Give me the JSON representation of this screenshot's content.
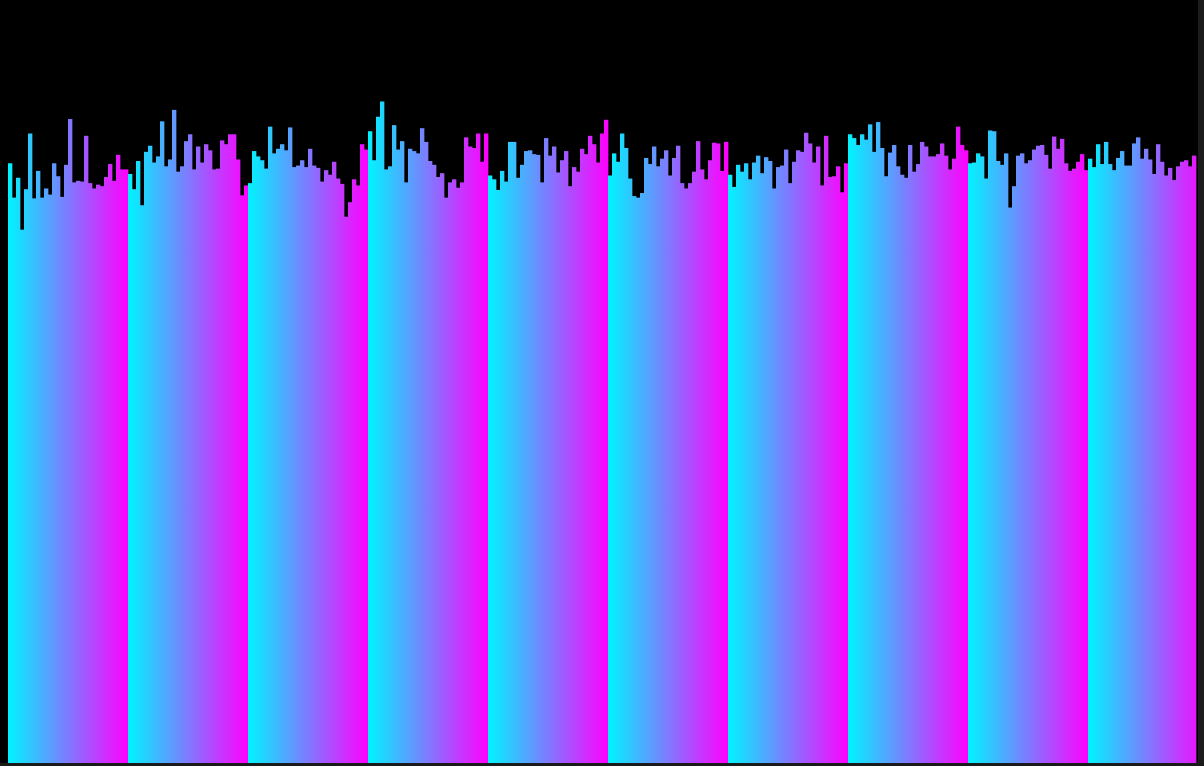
{
  "visualizer": {
    "colors": {
      "background": "#000000",
      "gradient_start": "#00f4ff",
      "gradient_end": "#ff00ff"
    },
    "band_count": 10,
    "bars_per_band": 30,
    "levels": [
      [
        0.786,
        0.741,
        0.767,
        0.699,
        0.752,
        0.825,
        0.74,
        0.776,
        0.741,
        0.753,
        0.745,
        0.786,
        0.769,
        0.742,
        0.784,
        0.844,
        0.761,
        0.763,
        0.762,
        0.822,
        0.76,
        0.753,
        0.758,
        0.756,
        0.768,
        0.785,
        0.763,
        0.797,
        0.778,
        0.778
      ],
      [
        0.772,
        0.752,
        0.789,
        0.731,
        0.801,
        0.809,
        0.787,
        0.795,
        0.841,
        0.782,
        0.791,
        0.856,
        0.775,
        0.782,
        0.815,
        0.824,
        0.778,
        0.808,
        0.787,
        0.811,
        0.803,
        0.778,
        0.779,
        0.816,
        0.811,
        0.824,
        0.824,
        0.791,
        0.744,
        0.757
      ],
      [
        0.76,
        0.802,
        0.795,
        0.79,
        0.779,
        0.834,
        0.799,
        0.805,
        0.811,
        0.803,
        0.833,
        0.781,
        0.783,
        0.79,
        0.781,
        0.805,
        0.783,
        0.78,
        0.762,
        0.777,
        0.771,
        0.788,
        0.766,
        0.759,
        0.716,
        0.735,
        0.765,
        0.757,
        0.811,
        0.804
      ],
      [
        0.828,
        0.79,
        0.847,
        0.867,
        0.778,
        0.782,
        0.836,
        0.804,
        0.815,
        0.761,
        0.805,
        0.802,
        0.799,
        0.832,
        0.814,
        0.789,
        0.784,
        0.768,
        0.773,
        0.741,
        0.761,
        0.765,
        0.754,
        0.761,
        0.82,
        0.808,
        0.806,
        0.825,
        0.788,
        0.825
      ],
      [
        0.77,
        0.765,
        0.751,
        0.776,
        0.762,
        0.814,
        0.814,
        0.767,
        0.784,
        0.802,
        0.803,
        0.798,
        0.797,
        0.761,
        0.819,
        0.796,
        0.808,
        0.774,
        0.79,
        0.802,
        0.756,
        0.781,
        0.775,
        0.805,
        0.798,
        0.822,
        0.811,
        0.787,
        0.825,
        0.843
      ],
      [
        0.77,
        0.799,
        0.788,
        0.825,
        0.806,
        0.766,
        0.743,
        0.741,
        0.747,
        0.793,
        0.785,
        0.808,
        0.782,
        0.792,
        0.803,
        0.77,
        0.793,
        0.809,
        0.76,
        0.753,
        0.76,
        0.775,
        0.815,
        0.778,
        0.765,
        0.79,
        0.813,
        0.812,
        0.776,
        0.814
      ],
      [
        0.771,
        0.755,
        0.784,
        0.775,
        0.786,
        0.765,
        0.787,
        0.796,
        0.773,
        0.794,
        0.789,
        0.753,
        0.781,
        0.783,
        0.804,
        0.76,
        0.788,
        0.803,
        0.801,
        0.826,
        0.812,
        0.787,
        0.808,
        0.757,
        0.822,
        0.768,
        0.769,
        0.782,
        0.748,
        0.786
      ],
      [
        0.824,
        0.819,
        0.81,
        0.824,
        0.817,
        0.837,
        0.801,
        0.84,
        0.806,
        0.769,
        0.8,
        0.81,
        0.782,
        0.771,
        0.767,
        0.81,
        0.775,
        0.785,
        0.814,
        0.808,
        0.795,
        0.795,
        0.798,
        0.812,
        0.796,
        0.778,
        0.792,
        0.834,
        0.81,
        0.803
      ],
      [
        0.786,
        0.787,
        0.799,
        0.795,
        0.766,
        0.829,
        0.828,
        0.789,
        0.784,
        0.799,
        0.728,
        0.756,
        0.796,
        0.799,
        0.786,
        0.79,
        0.804,
        0.809,
        0.81,
        0.797,
        0.779,
        0.821,
        0.805,
        0.818,
        0.786,
        0.776,
        0.779,
        0.788,
        0.798,
        0.777
      ],
      [
        0.792,
        0.781,
        0.811,
        0.785,
        0.814,
        0.785,
        0.777,
        0.793,
        0.802,
        0.783,
        0.783,
        0.812,
        0.82,
        0.792,
        0.805,
        0.791,
        0.772,
        0.811,
        0.788,
        0.77,
        0.78,
        0.764,
        0.782,
        0.788,
        0.79,
        0.782,
        0.796,
        0.78,
        0.767,
        0.776
      ]
    ]
  }
}
